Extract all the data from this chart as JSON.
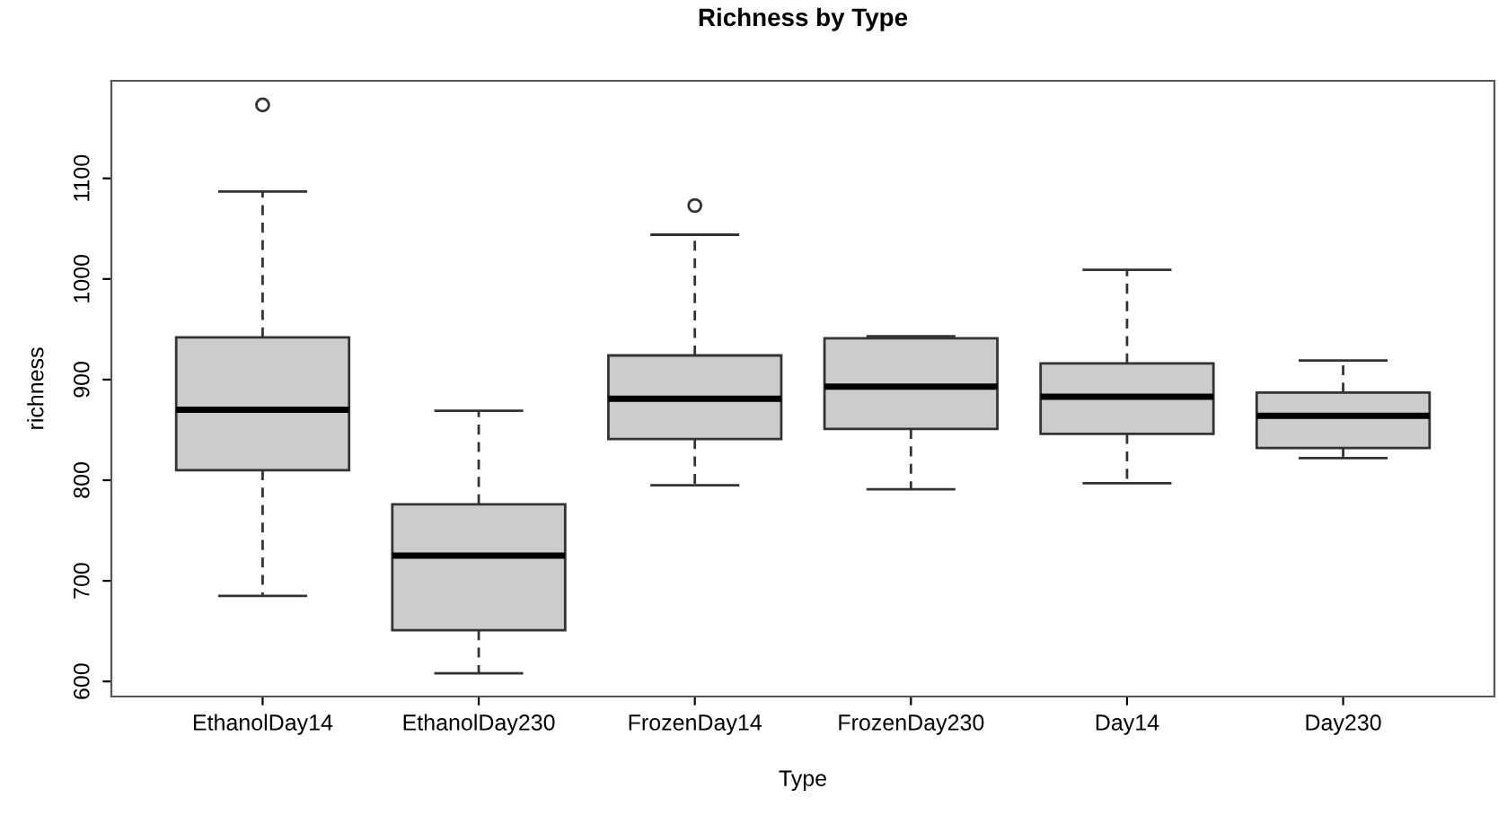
{
  "chart_data": {
    "type": "box",
    "title": "Richness by Type",
    "xlabel": "Type",
    "ylabel": "richness",
    "categories": [
      "EthanolDay14",
      "EthanolDay230",
      "FrozenDay14",
      "FrozenDay230",
      "Day14",
      "Day230"
    ],
    "boxes": [
      {
        "low": 685,
        "q1": 810,
        "median": 870,
        "q3": 942,
        "high": 1087,
        "outliers": [
          1173
        ]
      },
      {
        "low": 608,
        "q1": 651,
        "median": 725,
        "q3": 776,
        "high": 869
      },
      {
        "low": 795,
        "q1": 841,
        "median": 881,
        "q3": 924,
        "high": 1044,
        "outliers": [
          1073
        ]
      },
      {
        "low": 791,
        "q1": 851,
        "median": 893,
        "q3": 941,
        "high": 943
      },
      {
        "low": 797,
        "q1": 846,
        "median": 883,
        "q3": 916,
        "high": 1009
      },
      {
        "low": 822,
        "q1": 832,
        "median": 864,
        "q3": 887,
        "high": 919
      }
    ],
    "color": "#cccccc",
    "ylim": [
      585,
      1197
    ],
    "yticks": [
      600,
      700,
      800,
      900,
      1000,
      1100
    ],
    "grid": false,
    "legend": false
  }
}
